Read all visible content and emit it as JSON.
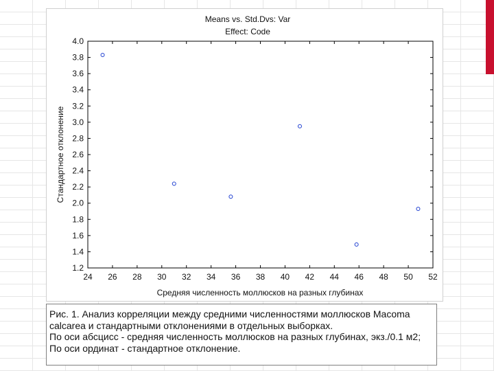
{
  "chart_data": {
    "type": "scatter",
    "title": "Means vs. Std.Dvs: Var",
    "subtitle": "Effect: Code",
    "xlabel": "Средняя численность моллюсков на разных глубинах",
    "ylabel": "Стандартное отклонение",
    "xlim": [
      24,
      52
    ],
    "ylim": [
      1.2,
      4.0
    ],
    "xticks": [
      "24",
      "26",
      "28",
      "30",
      "32",
      "34",
      "36",
      "38",
      "40",
      "42",
      "44",
      "46",
      "48",
      "50",
      "52"
    ],
    "yticks": [
      "4.0",
      "3.8",
      "3.6",
      "3.4",
      "3.2",
      "3.0",
      "2.8",
      "2.6",
      "2.4",
      "2.2",
      "2.0",
      "1.8",
      "1.6",
      "1.4",
      "1.2"
    ],
    "grid": false,
    "marker_color": "#1f3fd1",
    "points": [
      {
        "x": 25.2,
        "y": 3.83
      },
      {
        "x": 31.0,
        "y": 2.24
      },
      {
        "x": 35.6,
        "y": 2.08
      },
      {
        "x": 41.2,
        "y": 2.95
      },
      {
        "x": 45.8,
        "y": 1.49
      },
      {
        "x": 50.8,
        "y": 1.93
      }
    ]
  },
  "caption": {
    "line1": "Рис. 1. Анализ корреляции между средними численностями моллюсков Macoma",
    "line2": "calcarea и стандартными отклонениями в отдельных выборках.",
    "line3": "По оси абсцисс - средняя численность моллюсков на разных глубинах, экз./0.1 м2;",
    "line4": "По оси ординат - стандартное отклонение."
  }
}
